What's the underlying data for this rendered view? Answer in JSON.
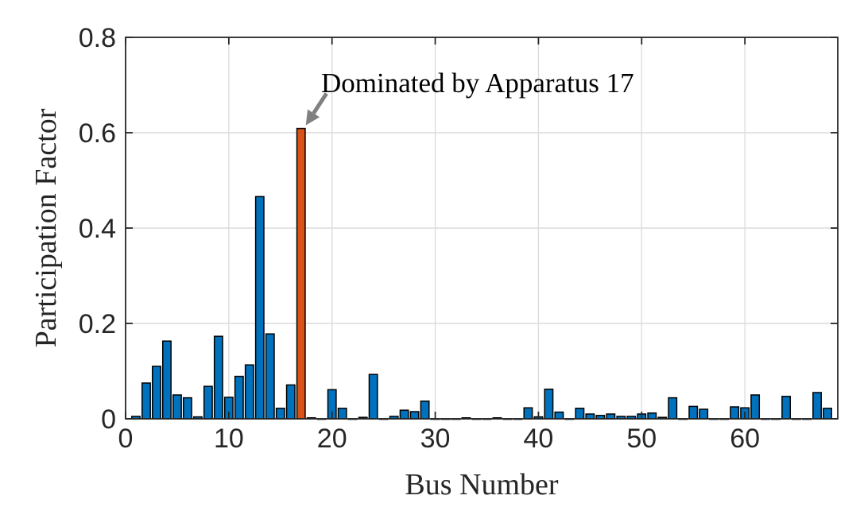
{
  "chart_data": {
    "type": "bar",
    "xlabel": "Bus Number",
    "ylabel": "Participation Factor",
    "xlim": [
      0,
      69
    ],
    "ylim": [
      0,
      0.8
    ],
    "xticks": [
      "0",
      "10",
      "20",
      "30",
      "40",
      "50",
      "60"
    ],
    "yticks": [
      "0",
      "0.2",
      "0.4",
      "0.6",
      "0.8"
    ],
    "grid": true,
    "colors": {
      "default": "#0072BD",
      "highlight": "#D95319",
      "annotation_arrow": "#808080"
    },
    "highlight_index": 17,
    "annotation": {
      "text": "Dominated by Apparatus 17",
      "target_bus": 17
    },
    "x": [
      1,
      2,
      3,
      4,
      5,
      6,
      7,
      8,
      9,
      10,
      11,
      12,
      13,
      14,
      15,
      16,
      17,
      18,
      19,
      20,
      21,
      22,
      23,
      24,
      25,
      26,
      27,
      28,
      29,
      30,
      31,
      32,
      33,
      34,
      35,
      36,
      37,
      38,
      39,
      40,
      41,
      42,
      43,
      44,
      45,
      46,
      47,
      48,
      49,
      50,
      51,
      52,
      53,
      54,
      55,
      56,
      57,
      58,
      59,
      60,
      61,
      62,
      63,
      64,
      65,
      66,
      67,
      68
    ],
    "values": [
      0.005,
      0.075,
      0.11,
      0.163,
      0.05,
      0.044,
      0.004,
      0.068,
      0.173,
      0.045,
      0.089,
      0.113,
      0.466,
      0.178,
      0.022,
      0.071,
      0.609,
      0.002,
      0,
      0.061,
      0.022,
      0,
      0.003,
      0.093,
      0,
      0.005,
      0.018,
      0.015,
      0.037,
      0,
      0,
      0,
      0.002,
      0,
      0,
      0.002,
      0,
      0,
      0.023,
      0.004,
      0.062,
      0.014,
      0,
      0.022,
      0.01,
      0.007,
      0.01,
      0.005,
      0.005,
      0.01,
      0.012,
      0.003,
      0.044,
      0,
      0.026,
      0.02,
      0,
      0,
      0.025,
      0.023,
      0.05,
      0,
      0,
      0.047,
      0,
      0,
      0.055,
      0.022
    ]
  }
}
